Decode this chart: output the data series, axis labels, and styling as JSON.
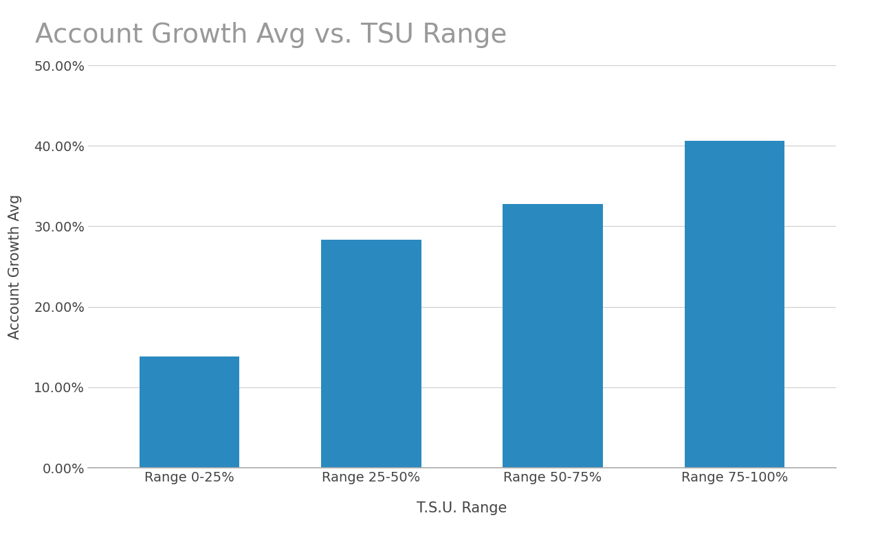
{
  "title": "Account Growth Avg vs. TSU Range",
  "xlabel": "T.S.U. Range",
  "ylabel": "Account Growth Avg",
  "categories": [
    "Range 0-25%",
    "Range 25-50%",
    "Range 50-75%",
    "Range 75-100%"
  ],
  "values": [
    0.138,
    0.283,
    0.328,
    0.406
  ],
  "bar_color": "#2a8abf",
  "ylim": [
    0,
    0.5
  ],
  "yticks": [
    0.0,
    0.1,
    0.2,
    0.3,
    0.4,
    0.5
  ],
  "background_color": "#ffffff",
  "title_fontsize": 28,
  "axis_label_fontsize": 15,
  "tick_fontsize": 14,
  "title_color": "#999999",
  "axis_label_color": "#444444",
  "tick_color": "#444444",
  "grid_color": "#cccccc",
  "bar_width": 0.55
}
